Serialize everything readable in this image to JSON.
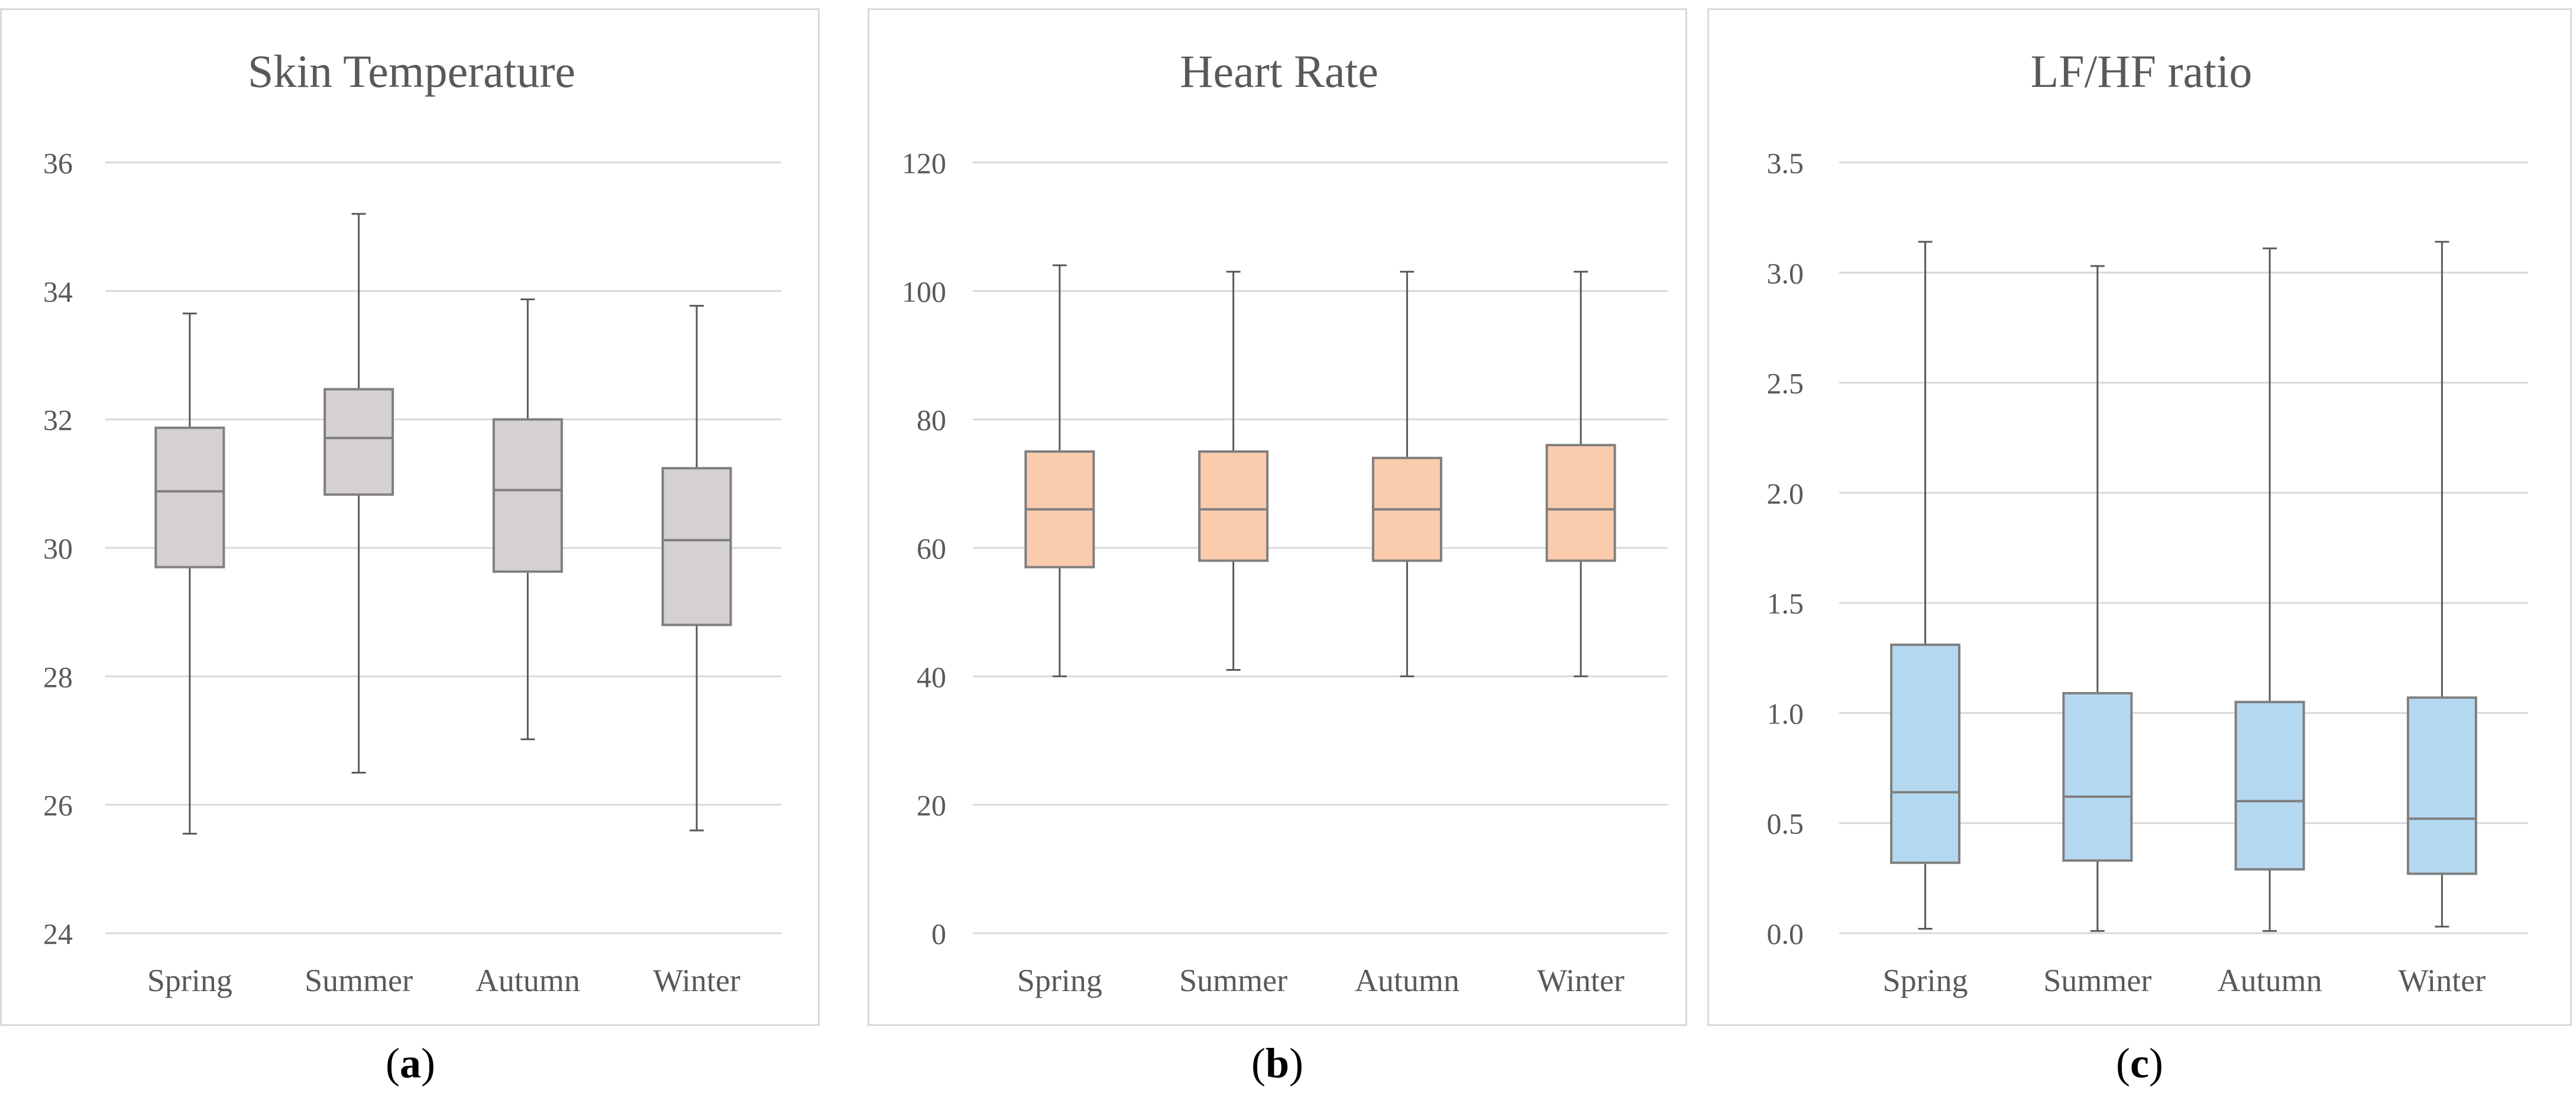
{
  "chart_data": [
    {
      "type": "boxplot",
      "title": "Skin Temperature",
      "categories": [
        "Spring",
        "Summer",
        "Autumn",
        "Winter"
      ],
      "ylim": [
        24,
        36
      ],
      "yticks": [
        "24",
        "26",
        "28",
        "30",
        "32",
        "34",
        "36"
      ],
      "grid": true,
      "fill": "#d5d0d1",
      "boxes": [
        {
          "min": 25.55,
          "q1": 29.7,
          "median": 30.88,
          "q3": 31.87,
          "max": 33.65
        },
        {
          "min": 26.5,
          "q1": 30.83,
          "median": 31.71,
          "q3": 32.47,
          "max": 35.2
        },
        {
          "min": 27.02,
          "q1": 29.63,
          "median": 30.9,
          "q3": 32.0,
          "max": 33.87
        },
        {
          "min": 25.6,
          "q1": 28.8,
          "median": 30.12,
          "q3": 31.24,
          "max": 33.77
        }
      ]
    },
    {
      "type": "boxplot",
      "title": "Heart Rate",
      "categories": [
        "Spring",
        "Summer",
        "Autumn",
        "Winter"
      ],
      "ylim": [
        0,
        120
      ],
      "yticks": [
        "0",
        "20",
        "40",
        "60",
        "80",
        "100",
        "120"
      ],
      "grid": true,
      "fill": "#fbcbae",
      "boxes": [
        {
          "min": 40,
          "q1": 57,
          "median": 66,
          "q3": 75,
          "max": 104
        },
        {
          "min": 41,
          "q1": 58,
          "median": 66,
          "q3": 75,
          "max": 103
        },
        {
          "min": 40,
          "q1": 58,
          "median": 66,
          "q3": 74,
          "max": 103
        },
        {
          "min": 40,
          "q1": 58,
          "median": 66,
          "q3": 76,
          "max": 103
        }
      ]
    },
    {
      "type": "boxplot",
      "title": "LF/HF ratio",
      "categories": [
        "Spring",
        "Summer",
        "Autumn",
        "Winter"
      ],
      "ylim": [
        0,
        3.5
      ],
      "yticks": [
        "0.0",
        "0.5",
        "1.0",
        "1.5",
        "2.0",
        "2.5",
        "3.0",
        "3.5"
      ],
      "grid": true,
      "fill": "#b5d8f1",
      "boxes": [
        {
          "min": 0.02,
          "q1": 0.32,
          "median": 0.64,
          "q3": 1.31,
          "max": 3.14
        },
        {
          "min": 0.01,
          "q1": 0.33,
          "median": 0.62,
          "q3": 1.09,
          "max": 3.03
        },
        {
          "min": 0.01,
          "q1": 0.29,
          "median": 0.6,
          "q3": 1.05,
          "max": 3.11
        },
        {
          "min": 0.03,
          "q1": 0.27,
          "median": 0.52,
          "q3": 1.07,
          "max": 3.14
        }
      ]
    }
  ],
  "captions": [
    "a",
    "b",
    "c"
  ],
  "colors": {
    "grid": "#d9d9d9",
    "box_stroke": "#7f7f7f",
    "whisker": "#595959",
    "text": "#595959",
    "panel_border": "#d9d9d9"
  }
}
